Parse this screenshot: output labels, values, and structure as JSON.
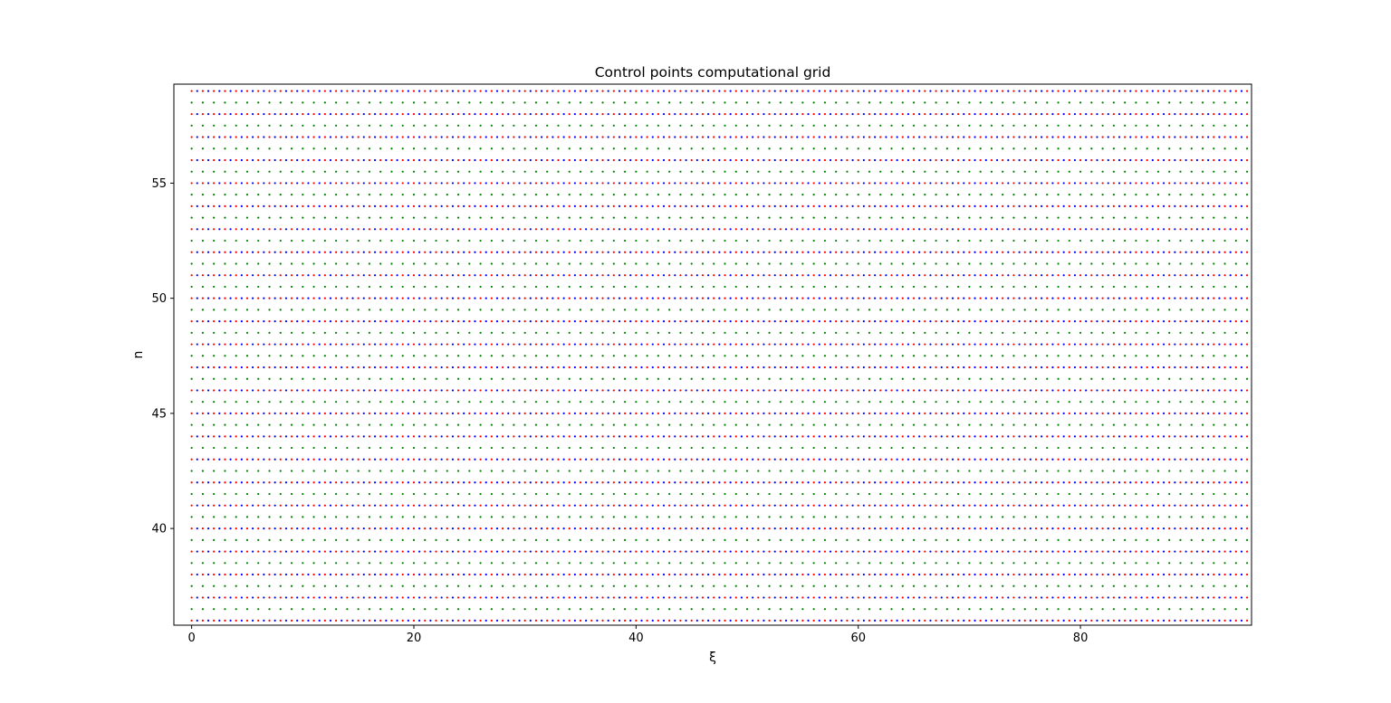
{
  "chart_data": {
    "type": "scatter",
    "title": "Control points computational grid",
    "xlabel": "ξ",
    "ylabel": "n",
    "xlim": [
      -1.6,
      95.4
    ],
    "ylim": [
      35.8,
      59.3
    ],
    "xticks": [
      0,
      20,
      40,
      60,
      80
    ],
    "yticks": [
      40,
      45,
      50,
      55
    ],
    "grid": false,
    "legend": "none",
    "series": [
      {
        "color": "#ff0000",
        "marker": "point",
        "x_range": [
          0,
          95
        ],
        "x_step": 0.5,
        "y_range": [
          36,
          59
        ],
        "y_step": 1,
        "note_pattern": "alternates with blue along each integer row"
      },
      {
        "color": "#0000ff",
        "marker": "point",
        "x_range": [
          0.5,
          95
        ],
        "x_step": 0.5,
        "y_range": [
          36,
          59
        ],
        "y_step": 1
      },
      {
        "color": "#008000",
        "marker": "point",
        "x_range": [
          0,
          95
        ],
        "x_step": 1,
        "y_range": [
          36.5,
          58.5
        ],
        "y_step": 1
      }
    ]
  }
}
